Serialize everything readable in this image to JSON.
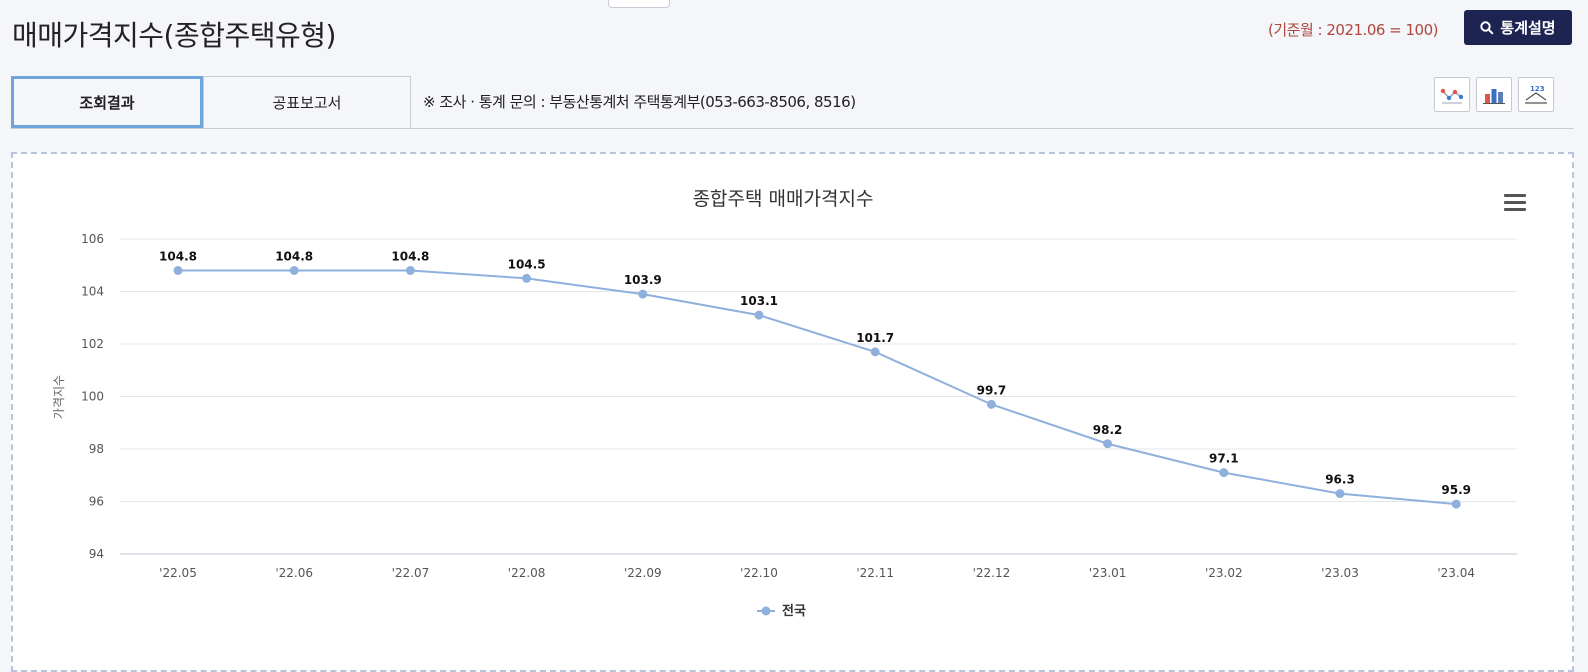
{
  "header": {
    "title": "매매가격지수(종합주택유형)",
    "base_note": "(기준월 : 2021.06 = 100)",
    "stat_button_label": "통계설명"
  },
  "tabs": [
    {
      "label": "조회결과",
      "active": true
    },
    {
      "label": "공표보고서",
      "active": false
    }
  ],
  "inquiry_text": "※ 조사 · 통계 문의 : 부동산통계처 주택통계부(053-663-8506, 8516)",
  "view_buttons": [
    "line-chart-icon",
    "bar-chart-icon",
    "table-icon"
  ],
  "colors": {
    "series": "#8fb0dc",
    "navy": "#1d2451",
    "accent_red": "#b0463d",
    "active_tab_border": "#6fa4dc"
  },
  "chart_data": {
    "type": "line",
    "title": "종합주택 매매가격지수",
    "ylabel": "가격지수",
    "xlabel": "",
    "ylim": [
      94,
      106
    ],
    "yticks": [
      94,
      96,
      98,
      100,
      102,
      104,
      106
    ],
    "categories": [
      "'22.05",
      "'22.06",
      "'22.07",
      "'22.08",
      "'22.09",
      "'22.10",
      "'22.11",
      "'22.12",
      "'23.01",
      "'23.02",
      "'23.03",
      "'23.04"
    ],
    "series": [
      {
        "name": "전국",
        "values": [
          104.8,
          104.8,
          104.8,
          104.5,
          103.9,
          103.1,
          101.7,
          99.7,
          98.2,
          97.1,
          96.3,
          95.9
        ]
      }
    ],
    "grid": true,
    "legend": "bottom-center"
  }
}
